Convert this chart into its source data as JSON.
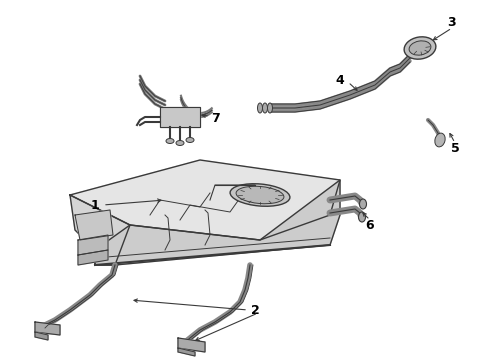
{
  "background_color": "#ffffff",
  "line_color": "#3a3a3a",
  "fill_light": "#e8e8e8",
  "fill_mid": "#d0d0d0",
  "fill_dark": "#b8b8b8",
  "text_color": "#000000",
  "label_fontsize": 9,
  "figure_width": 4.9,
  "figure_height": 3.6,
  "dpi": 100
}
